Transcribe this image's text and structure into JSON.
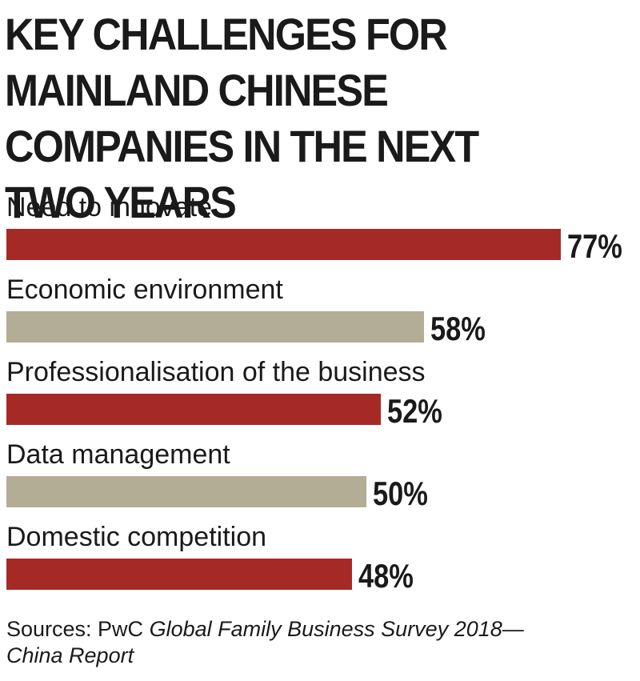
{
  "colors": {
    "red_bar": "#a52a26",
    "tan_bar": "#b3ad95",
    "text": "#1a1a1a"
  },
  "source": {
    "prefix": "Sources: PwC ",
    "title": "Global Family Business Survey 2018—China Report"
  },
  "chart_data": {
    "type": "bar",
    "orientation": "horizontal",
    "title": "KEY CHALLENGES FOR MAINLAND CHINESE COMPANIES IN THE NEXT TWO YEARS",
    "categories": [
      "Need to innovate",
      "Economic environment",
      "Professionalisation of the business",
      "Data management",
      "Domestic competition"
    ],
    "values": [
      77,
      58,
      52,
      50,
      48
    ],
    "value_labels": [
      "77%",
      "58%",
      "52%",
      "50%",
      "48%"
    ],
    "bar_colors": [
      "#a52a26",
      "#b3ad95",
      "#a52a26",
      "#b3ad95",
      "#a52a26"
    ],
    "unit": "%",
    "xlim": [
      0,
      100
    ],
    "grid": false,
    "legend": "none"
  }
}
